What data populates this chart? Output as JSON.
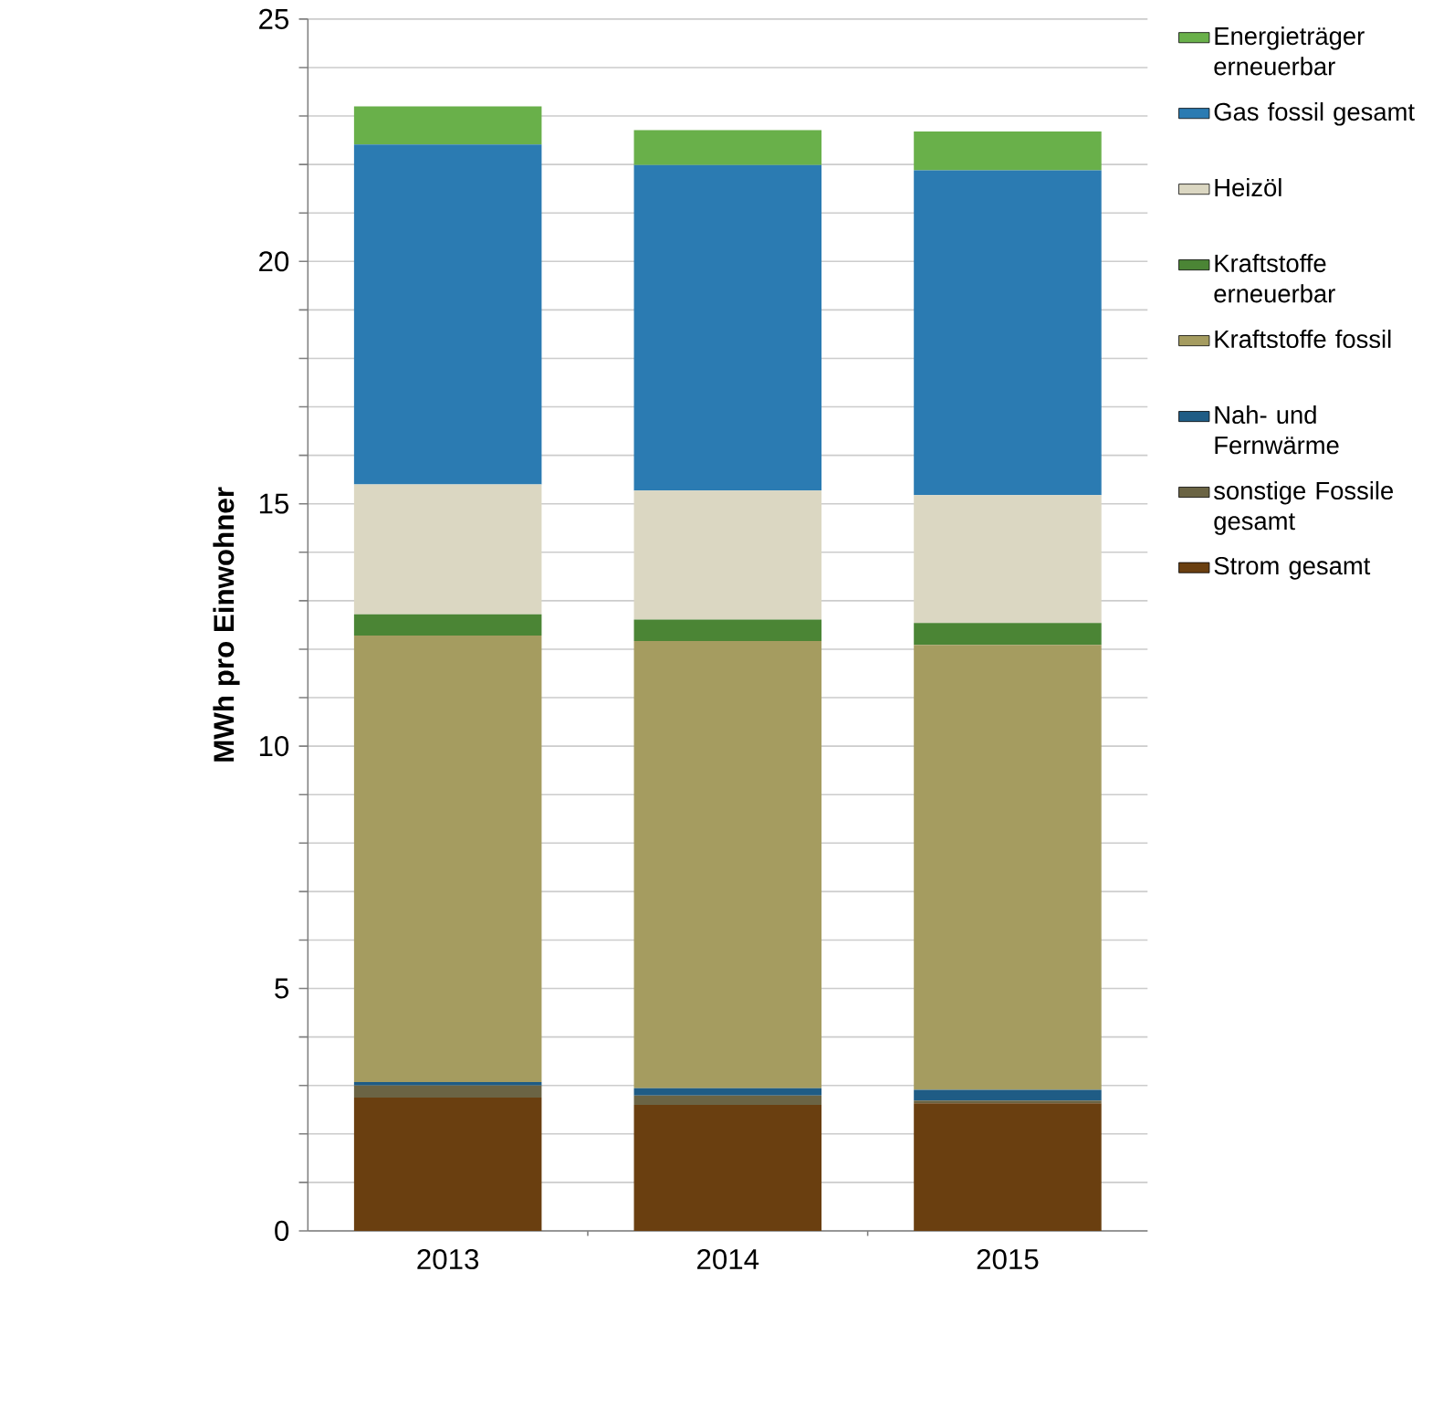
{
  "chart_data": {
    "type": "bar",
    "stacked": true,
    "ylabel": "MWh pro Einwohner",
    "categories": [
      "2013",
      "2014",
      "2015"
    ],
    "series": [
      {
        "name": "Strom gesamt",
        "color": "#6a3f10",
        "values": [
          2.75,
          2.6,
          2.63
        ]
      },
      {
        "name": "sonstige Fossile gesamt",
        "color": "#6b6444",
        "values": [
          0.25,
          0.19,
          0.06
        ]
      },
      {
        "name": "Nah- und Fernwärme",
        "color": "#1f5c85",
        "values": [
          0.07,
          0.15,
          0.22
        ]
      },
      {
        "name": "Kraftstoffe fossil",
        "color": "#a59c60",
        "values": [
          9.21,
          9.23,
          9.18
        ]
      },
      {
        "name": "Kraftstoffe erneuerbar",
        "color": "#4b8535",
        "values": [
          0.44,
          0.44,
          0.45
        ]
      },
      {
        "name": "Heizöl",
        "color": "#dbd7c2",
        "values": [
          2.68,
          2.66,
          2.64
        ]
      },
      {
        "name": "Gas fossil gesamt",
        "color": "#2b7bb2",
        "values": [
          7.01,
          6.72,
          6.7
        ]
      },
      {
        "name": "Energieträger erneuerbar",
        "color": "#69b04a",
        "values": [
          0.79,
          0.72,
          0.8
        ]
      }
    ],
    "ylim": [
      0,
      25
    ],
    "yticks": [
      0,
      {
        "value": 1,
        "label": null
      },
      {
        "value": 2,
        "label": null
      },
      {
        "value": 3,
        "label": null
      },
      {
        "value": 4,
        "label": null
      },
      5,
      {
        "value": 6,
        "label": null
      },
      {
        "value": 7,
        "label": null
      },
      {
        "value": 8,
        "label": null
      },
      {
        "value": 9,
        "label": null
      },
      10,
      {
        "value": 11,
        "label": null
      },
      {
        "value": 12,
        "label": null
      },
      {
        "value": 13,
        "label": null
      },
      {
        "value": 14,
        "label": null
      },
      15,
      {
        "value": 16,
        "label": null
      },
      {
        "value": 17,
        "label": null
      },
      {
        "value": 18,
        "label": null
      },
      {
        "value": 19,
        "label": null
      },
      20,
      {
        "value": 21,
        "label": null
      },
      {
        "value": 22,
        "label": null
      },
      {
        "value": 23,
        "label": null
      },
      {
        "value": 24,
        "label": null
      },
      25
    ],
    "grid": "y",
    "legend": "right"
  }
}
